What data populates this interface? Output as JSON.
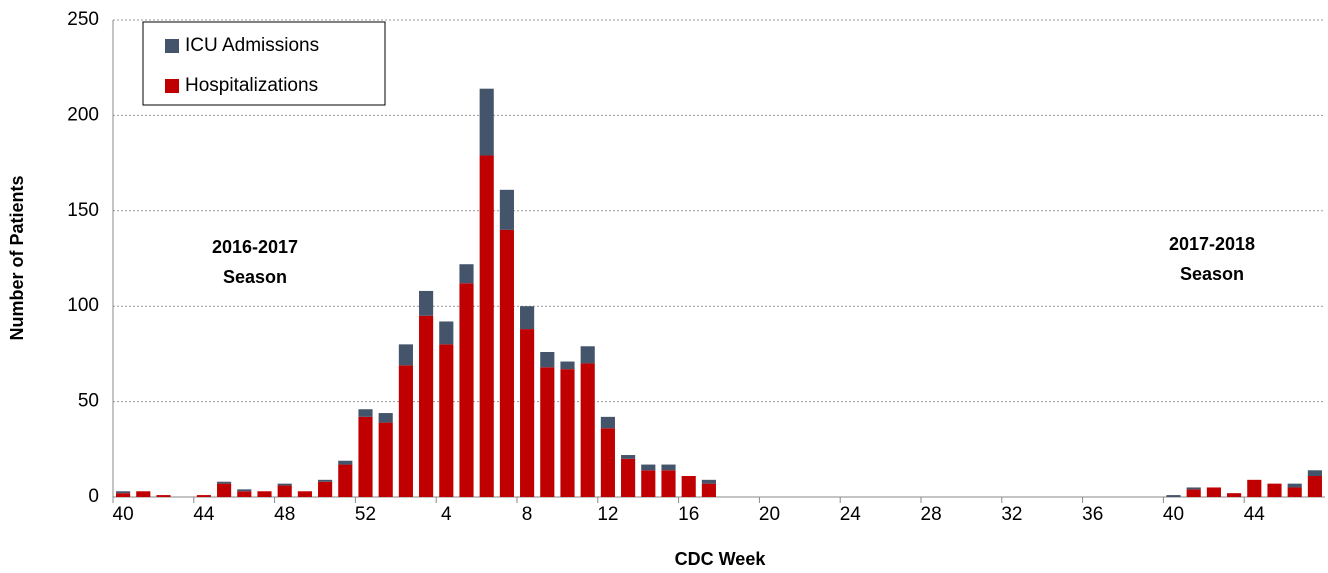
{
  "chart_data": {
    "type": "stacked-bar",
    "x_label": "CDC Week",
    "y_label": "Number of Patients",
    "categories": [
      "40",
      null,
      null,
      null,
      "44",
      null,
      null,
      null,
      "48",
      null,
      null,
      null,
      "52",
      null,
      null,
      null,
      "4",
      null,
      null,
      null,
      "8",
      null,
      null,
      null,
      "12",
      null,
      null,
      null,
      "16",
      null,
      null,
      null,
      "20",
      null,
      null,
      null,
      "24",
      null,
      null,
      null,
      "28",
      null,
      null,
      null,
      "32",
      null,
      null,
      null,
      "36",
      null,
      null,
      null,
      "40",
      null,
      null,
      null,
      "44",
      null,
      null,
      null
    ],
    "series": [
      {
        "name": "Hospitalizations",
        "color": "#c00000",
        "values": [
          2,
          3,
          1,
          0,
          1,
          7,
          3,
          3,
          6,
          3,
          8,
          17,
          42,
          39,
          69,
          95,
          80,
          112,
          179,
          140,
          88,
          68,
          67,
          70,
          36,
          20,
          14,
          14,
          11,
          7,
          0,
          0,
          0,
          0,
          0,
          0,
          0,
          0,
          0,
          0,
          0,
          0,
          0,
          0,
          0,
          0,
          0,
          0,
          0,
          0,
          0,
          0,
          0,
          4,
          5,
          2,
          9,
          7,
          5,
          11
        ]
      },
      {
        "name": "ICU Admissions",
        "color": "#44546a",
        "values": [
          1,
          0,
          0,
          0,
          0,
          1,
          1,
          0,
          1,
          0,
          1,
          2,
          4,
          5,
          11,
          13,
          12,
          10,
          35,
          21,
          12,
          8,
          4,
          9,
          6,
          2,
          3,
          3,
          0,
          2,
          0,
          0,
          0,
          0,
          0,
          0,
          0,
          0,
          0,
          0,
          0,
          0,
          0,
          0,
          0,
          0,
          0,
          0,
          0,
          0,
          0,
          0,
          1,
          1,
          0,
          0,
          0,
          0,
          2,
          3
        ]
      }
    ],
    "ylim": [
      0,
      250
    ],
    "yticks": [
      0,
      50,
      100,
      150,
      200,
      250
    ],
    "grid": true,
    "annotations": [
      [
        "2016-2017",
        "Season"
      ],
      [
        "2017-2018",
        "Season"
      ]
    ],
    "legend": "top-left"
  }
}
